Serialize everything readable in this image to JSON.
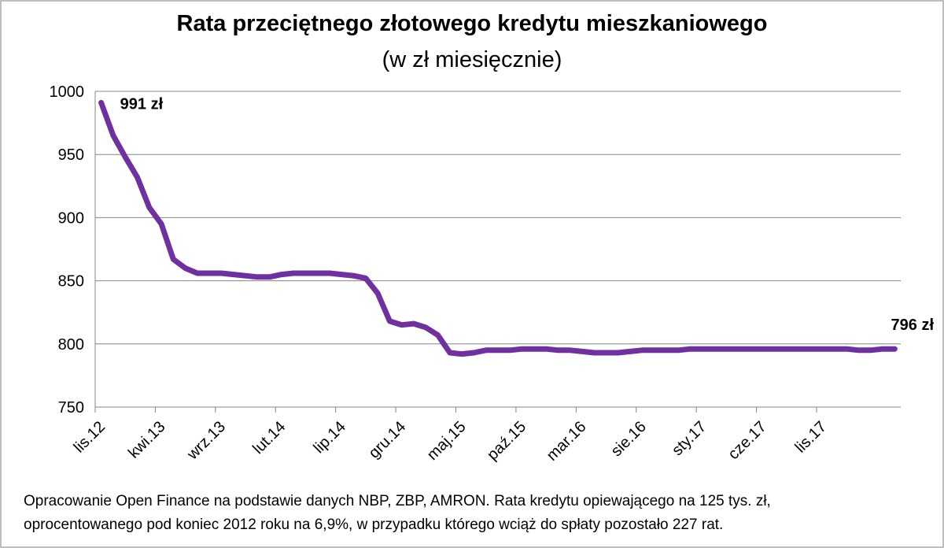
{
  "chart_data": {
    "type": "line",
    "title": "Rata przeciętnego złotowego kredytu mieszkaniowego",
    "subtitle": "(w zł miesięcznie)",
    "ylim": [
      750,
      1000
    ],
    "yticks": [
      750,
      800,
      850,
      900,
      950,
      1000
    ],
    "grid": true,
    "xtick_labels": [
      "lis.12",
      "kwi.13",
      "wrz.13",
      "lut.14",
      "lip.14",
      "gru.14",
      "maj.15",
      "paź.15",
      "mar.16",
      "sie.16",
      "sty.17",
      "cze.17",
      "lis.17"
    ],
    "series": [
      {
        "color": "#7030a0",
        "values": [
          991,
          965,
          948,
          932,
          908,
          895,
          867,
          860,
          856,
          856,
          856,
          855,
          854,
          853,
          853,
          855,
          856,
          856,
          856,
          856,
          855,
          854,
          852,
          840,
          818,
          815,
          816,
          813,
          807,
          793,
          792,
          793,
          795,
          795,
          795,
          796,
          796,
          796,
          795,
          795,
          794,
          793,
          793,
          793,
          794,
          795,
          795,
          795,
          795,
          796,
          796,
          796,
          796,
          796,
          796,
          796,
          796,
          796,
          796,
          796,
          796,
          796,
          796,
          795,
          795,
          796,
          796
        ]
      }
    ],
    "annotations": [
      {
        "text": "991 zł",
        "point": "first"
      },
      {
        "text": "796 zł",
        "point": "last"
      }
    ]
  },
  "footnote": {
    "line1": "Opracowanie Open Finance na podstawie danych NBP, ZBP, AMRON. Rata kredytu opiewającego na 125 tys. zł,",
    "line2": "oprocentowanego pod koniec 2012 roku na 6,9%, w przypadku którego wciąż do spłaty pozostało 227 rat."
  }
}
